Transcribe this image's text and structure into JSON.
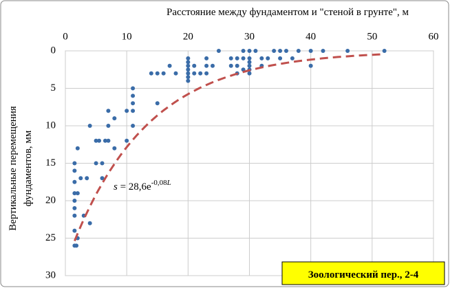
{
  "chart_data": {
    "type": "scatter",
    "x_label": "Расстояние между фундаментом и \"стеной в грунте\", м",
    "y_label": [
      "Вертикальные  перемещения",
      "фундаментов, мм"
    ],
    "xlim": [
      0,
      60
    ],
    "xticks": [
      0,
      10,
      20,
      30,
      40,
      50,
      60
    ],
    "ylim": [
      0,
      30
    ],
    "yticks": [
      0,
      5,
      10,
      15,
      20,
      25,
      30
    ],
    "y_reversed": true,
    "x_axis_position": "top",
    "grid": true,
    "series": [
      {
        "color": "#3a6ca8",
        "x": [
          1.5,
          1.8,
          1.5,
          2,
          1.5,
          1.5,
          1.5,
          1.5,
          2,
          1.5,
          1.5,
          1.5,
          2,
          2.5,
          3,
          3.5,
          4,
          4,
          5,
          5,
          5.5,
          6,
          6,
          6.5,
          7,
          7,
          7,
          8,
          8,
          10,
          10,
          11,
          11,
          11,
          11,
          11,
          14,
          15,
          15,
          16,
          17,
          18,
          20,
          20,
          20,
          20,
          20,
          20,
          21,
          21,
          22,
          23,
          23,
          23,
          24,
          25,
          27,
          28,
          28,
          28,
          29,
          29,
          30,
          30,
          30,
          30,
          31,
          32,
          32,
          34,
          35,
          35,
          36,
          37,
          38,
          40,
          40,
          42,
          46,
          52,
          29,
          30,
          33,
          27,
          30,
          20
        ],
        "values": [
          26,
          26,
          24,
          25,
          22,
          21,
          20,
          19,
          19,
          17.5,
          16,
          15,
          13,
          17,
          22,
          17,
          23,
          10,
          12,
          15,
          12,
          15,
          17,
          12,
          12,
          10,
          8,
          9,
          13,
          8,
          12,
          5,
          6,
          7,
          8,
          10,
          3,
          3,
          7,
          3,
          2,
          3,
          1,
          2,
          3,
          3.5,
          4,
          2.5,
          2,
          3,
          3,
          1,
          2,
          3,
          2,
          0,
          1,
          1,
          2,
          3,
          0,
          1,
          0,
          1,
          2,
          3,
          0,
          1,
          2,
          0,
          0,
          1,
          0,
          1,
          0,
          0,
          2,
          0,
          0,
          0,
          2.5,
          2.5,
          1,
          2,
          1.5,
          1.5
        ]
      }
    ],
    "trendline": {
      "a": 28.6,
      "b": -0.08,
      "range": [
        1.5,
        52
      ],
      "color": "#c0504d",
      "equation": [
        "s",
        " = 28,6e",
        "-0,08",
        "L"
      ]
    },
    "annotation": "Зоологический пер., 2-4"
  }
}
